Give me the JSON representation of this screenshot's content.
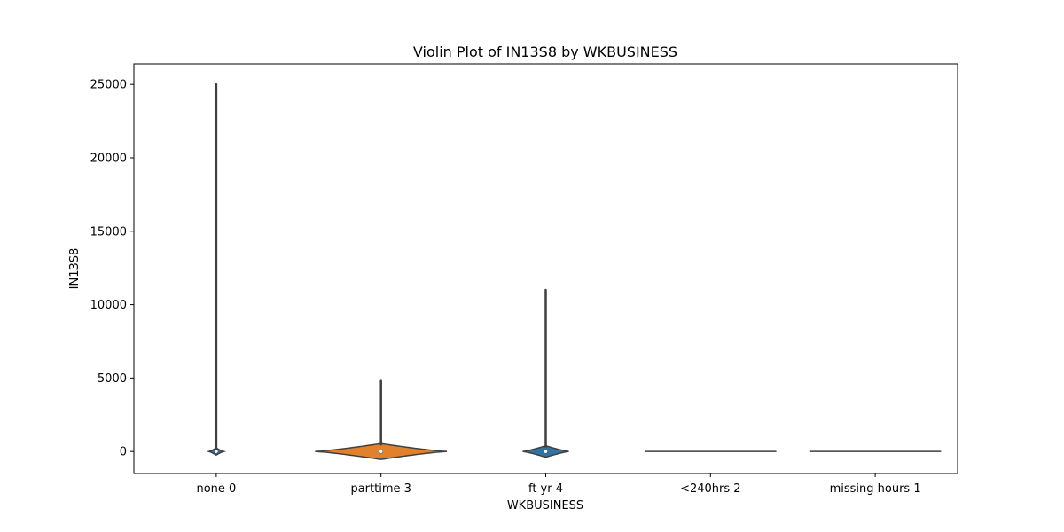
{
  "chart_data": {
    "type": "violin",
    "title": "Violin Plot of IN13S8 by WKBUSINESS",
    "xlabel": "WKBUSINESS",
    "ylabel": "IN13S8",
    "categories": [
      "none 0",
      "parttime 3",
      "ft yr 4",
      "<240hrs 2",
      "missing hours 1"
    ],
    "yticks": [
      0,
      5000,
      10000,
      15000,
      20000,
      25000
    ],
    "ylim": [
      -1500,
      26400
    ],
    "grid": false,
    "legend": "none",
    "violins": [
      {
        "category": "none 0",
        "min": 0,
        "max": 25000,
        "median": 0,
        "q1": 0,
        "q3": 0,
        "density_peak_value": 0,
        "max_width": 0.09,
        "fill": "#3274a1"
      },
      {
        "category": "parttime 3",
        "min": 0,
        "max": 4800,
        "median": 0,
        "q1": 0,
        "q3": 0,
        "density_peak_value": 0,
        "max_width": 0.8,
        "fill": "#e1812c"
      },
      {
        "category": "ft yr 4",
        "min": 0,
        "max": 11000,
        "median": 0,
        "q1": 0,
        "q3": 0,
        "density_peak_value": 0,
        "max_width": 0.28,
        "fill": "#3274a1"
      },
      {
        "category": "<240hrs 2",
        "min": 0,
        "max": 0,
        "median": 0,
        "q1": 0,
        "q3": 0,
        "density_peak_value": 0,
        "max_width": 0.8,
        "fill": "#c03d3e"
      },
      {
        "category": "missing hours 1",
        "min": 0,
        "max": 0,
        "median": 0,
        "q1": 0,
        "q3": 0,
        "density_peak_value": 0,
        "max_width": 0.8,
        "fill": "#9372b2"
      }
    ],
    "colors": {
      "outline": "#3f3f3f",
      "axis": "#000000",
      "text": "#000000",
      "background": "#ffffff"
    }
  }
}
